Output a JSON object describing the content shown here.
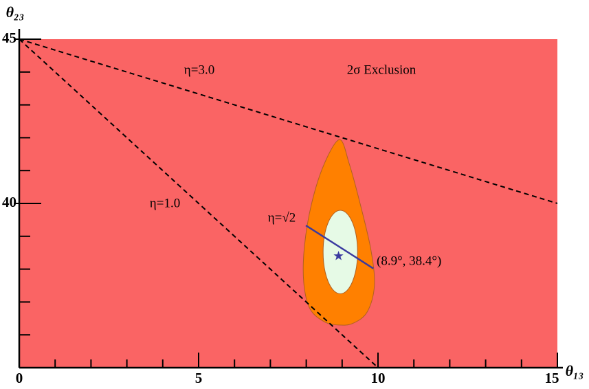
{
  "chart_data": {
    "type": "region",
    "xlabel": "θ₁₃",
    "ylabel": "θ₂₃",
    "xlim": [
      0,
      15
    ],
    "ylim": [
      35,
      45
    ],
    "xticks": [
      0,
      5,
      10,
      15
    ],
    "yticks": [
      40,
      45
    ],
    "xminorticks": [
      1,
      2,
      3,
      4,
      6,
      7,
      8,
      9,
      11,
      12,
      13,
      14
    ],
    "yminorticks": [
      36,
      37,
      38,
      39,
      41,
      42,
      43,
      44
    ],
    "background_color": "#fa6464",
    "lines": [
      {
        "name": "η=3.0",
        "x": [
          0,
          15
        ],
        "y": [
          45,
          40
        ],
        "color": "#000000",
        "dashed": true
      },
      {
        "name": "η=1.0",
        "x": [
          0,
          10
        ],
        "y": [
          45,
          35
        ],
        "color": "#000000",
        "dashed": true
      },
      {
        "name": "η=√2",
        "x": [
          7.99,
          9.87
        ],
        "y": [
          39.33,
          38.02
        ],
        "color": "#3a3aa0",
        "dashed": false
      }
    ],
    "region": {
      "color": "#ff8000",
      "x": [
        8.93,
        9.2,
        9.5,
        9.8,
        9.9,
        9.7,
        9.3,
        8.9,
        8.5,
        8.1,
        7.93,
        7.95,
        8.15,
        8.5
      ],
      "y": [
        41.94,
        41.2,
        40.0,
        38.6,
        37.5,
        36.7,
        36.35,
        36.3,
        36.4,
        36.8,
        37.6,
        38.7,
        40.0,
        41.2
      ]
    },
    "ellipse": {
      "color": "#e6fae6",
      "cx": 8.95,
      "cy": 38.52,
      "rx": 0.48,
      "ry": 1.27
    },
    "best_fit": {
      "x": 8.9,
      "y": 38.4,
      "color": "#3a3aa0",
      "label": "(8.9°, 38.4°)"
    },
    "annotations": [
      "η=3.0",
      "2σ Exclusion",
      "η=1.0",
      "η=√2"
    ]
  }
}
